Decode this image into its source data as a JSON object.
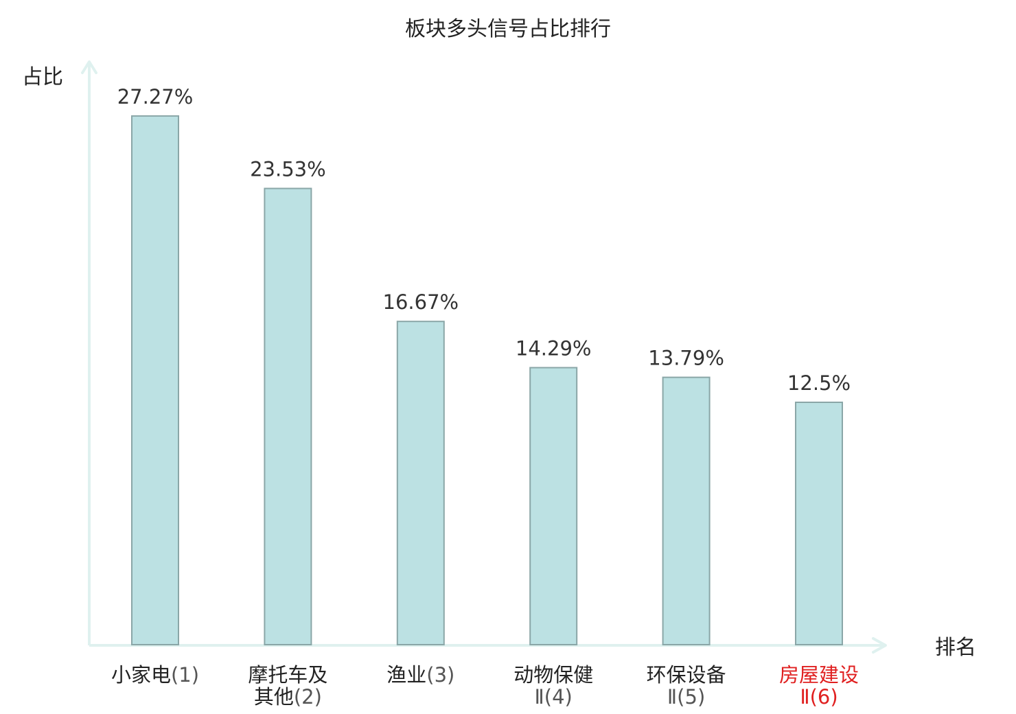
{
  "chart_data": {
    "type": "bar",
    "title": "板块多头信号占比排行",
    "ylabel": "占比",
    "xlabel": "排名",
    "ylim": [
      0,
      30
    ],
    "grid": false,
    "categories": [
      {
        "lines": [
          {
            "name": "小家电",
            "rank": "(1)"
          }
        ],
        "highlight": false
      },
      {
        "lines": [
          {
            "name": "摩托车及",
            "rank": ""
          },
          {
            "name": "其他",
            "rank": "(2)"
          }
        ],
        "highlight": false
      },
      {
        "lines": [
          {
            "name": "渔业",
            "rank": "(3)"
          }
        ],
        "highlight": false
      },
      {
        "lines": [
          {
            "name": "动物保健",
            "rank": ""
          },
          {
            "name": "",
            "rank": "Ⅱ(4)"
          }
        ],
        "highlight": false
      },
      {
        "lines": [
          {
            "name": "环保设备",
            "rank": ""
          },
          {
            "name": "",
            "rank": "Ⅱ(5)"
          }
        ],
        "highlight": false
      },
      {
        "lines": [
          {
            "name": "房屋建设",
            "rank": ""
          },
          {
            "name": "",
            "rank": "Ⅱ(6)"
          }
        ],
        "highlight": true
      }
    ],
    "values": [
      27.27,
      23.53,
      16.67,
      14.29,
      13.79,
      12.5
    ],
    "value_labels": [
      "27.27%",
      "23.53%",
      "16.67%",
      "14.29%",
      "13.79%",
      "12.5%"
    ],
    "colors": {
      "bar_fill": "#bce1e3",
      "bar_stroke": "#8aa6a7",
      "axis": "#dff1ef",
      "label_text": "#222222",
      "rank_text": "#555555",
      "highlight_text": "#e02020"
    }
  }
}
